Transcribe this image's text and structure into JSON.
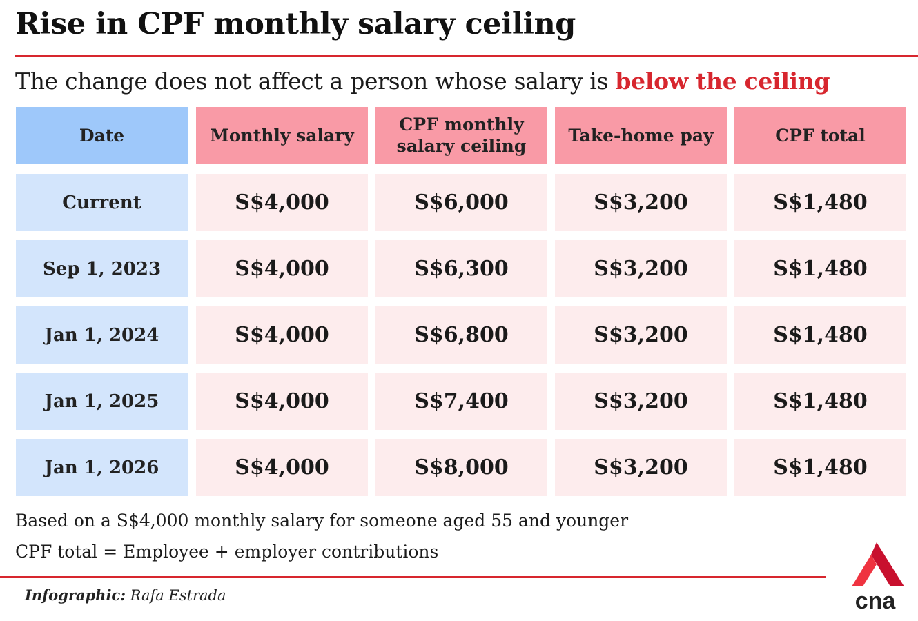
{
  "title": "Rise in CPF monthly salary ceiling",
  "subtitle": {
    "text": "The change does not affect a person whose salary is ",
    "highlight": "below the ceiling"
  },
  "chart_data": {
    "type": "table",
    "columns": [
      "Date",
      "Monthly salary",
      "CPF monthly salary ceiling",
      "Take-home pay",
      "CPF total"
    ],
    "rows": [
      {
        "date": "Current",
        "values": [
          "S$4,000",
          "S$6,000",
          "S$3,200",
          "S$1,480"
        ]
      },
      {
        "date": "Sep 1, 2023",
        "values": [
          "S$4,000",
          "S$6,300",
          "S$3,200",
          "S$1,480"
        ]
      },
      {
        "date": "Jan 1, 2024",
        "values": [
          "S$4,000",
          "S$6,800",
          "S$3,200",
          "S$1,480"
        ]
      },
      {
        "date": "Jan 1, 2025",
        "values": [
          "S$4,000",
          "S$7,400",
          "S$3,200",
          "S$1,480"
        ]
      },
      {
        "date": "Jan 1, 2026",
        "values": [
          "S$4,000",
          "S$8,000",
          "S$3,200",
          "S$1,480"
        ]
      }
    ]
  },
  "notes": [
    "Based on a S$4,000 monthly salary for someone aged 55 and younger",
    "CPF total = Employee + employer contributions"
  ],
  "credit": {
    "label": "Infographic:",
    "name": " Rafa Estrada"
  },
  "colors": {
    "accent": "#d7262e",
    "date_header": "#9ec8fa",
    "date_cell": "#d3e5fc",
    "value_header": "#f99aa6",
    "value_cell": "#fdeced"
  },
  "logo": {
    "icon": "cna-logo-icon",
    "text": "cna"
  }
}
